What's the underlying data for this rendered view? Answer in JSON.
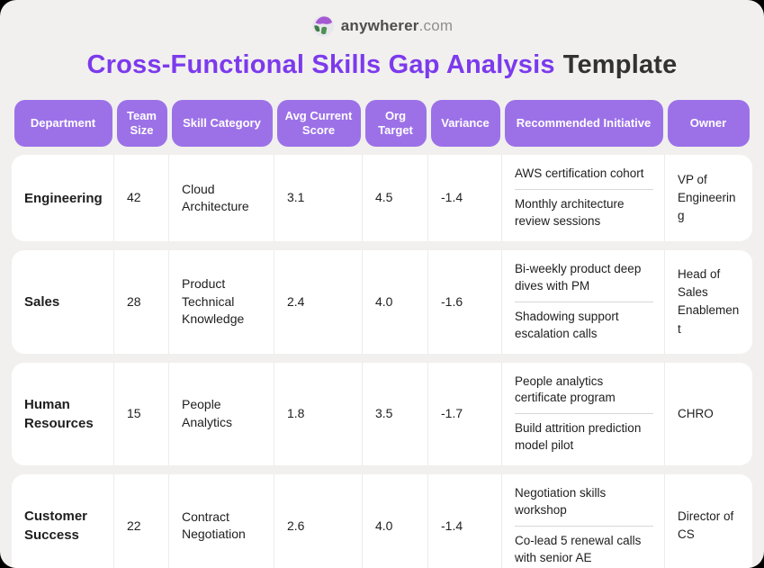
{
  "brand": {
    "name": "anywherer",
    "tld": ".com",
    "icon": "globe-icon"
  },
  "title": {
    "highlight": "Cross-Functional Skills Gap Analysis",
    "rest": "Template"
  },
  "colors": {
    "header_pill_purple": "#9c71e8",
    "title_purple": "#7c3aed",
    "header_text": "#ffffff",
    "page_background": "#f1f0ee",
    "row_background": "#ffffff",
    "body_text": "#1e1e1e",
    "logo_purple": "#a35ad2",
    "logo_green": "#3f7d46"
  },
  "table": {
    "columns": [
      "Department",
      "Team Size",
      "Skill Category",
      "Avg Current Score",
      "Org Target",
      "Variance",
      "Recommended Initiative",
      "Owner"
    ],
    "rows": [
      {
        "department": "Engineering",
        "team_size": "42",
        "skill_category": "Cloud Architecture",
        "avg_current_score": "3.1",
        "org_target": "4.5",
        "variance": "-1.4",
        "initiatives": [
          "AWS certification cohort",
          "Monthly architecture review sessions"
        ],
        "owner": "VP of Engineering"
      },
      {
        "department": "Sales",
        "team_size": "28",
        "skill_category": "Product Technical Knowledge",
        "avg_current_score": "2.4",
        "org_target": "4.0",
        "variance": "-1.6",
        "initiatives": [
          "Bi-weekly product deep dives with PM",
          "Shadowing support escalation calls"
        ],
        "owner": "Head of Sales Enablement"
      },
      {
        "department": "Human Resources",
        "team_size": "15",
        "skill_category": "People Analytics",
        "avg_current_score": "1.8",
        "org_target": "3.5",
        "variance": "-1.7",
        "initiatives": [
          "People analytics certificate program",
          "Build attrition prediction model pilot"
        ],
        "owner": "CHRO"
      },
      {
        "department": "Customer Success",
        "team_size": "22",
        "skill_category": "Contract Negotiation",
        "avg_current_score": "2.6",
        "org_target": "4.0",
        "variance": "-1.4",
        "initiatives": [
          "Negotiation skills workshop",
          "Co-lead 5 renewal calls with senior AE"
        ],
        "owner": "Director of CS"
      }
    ]
  }
}
